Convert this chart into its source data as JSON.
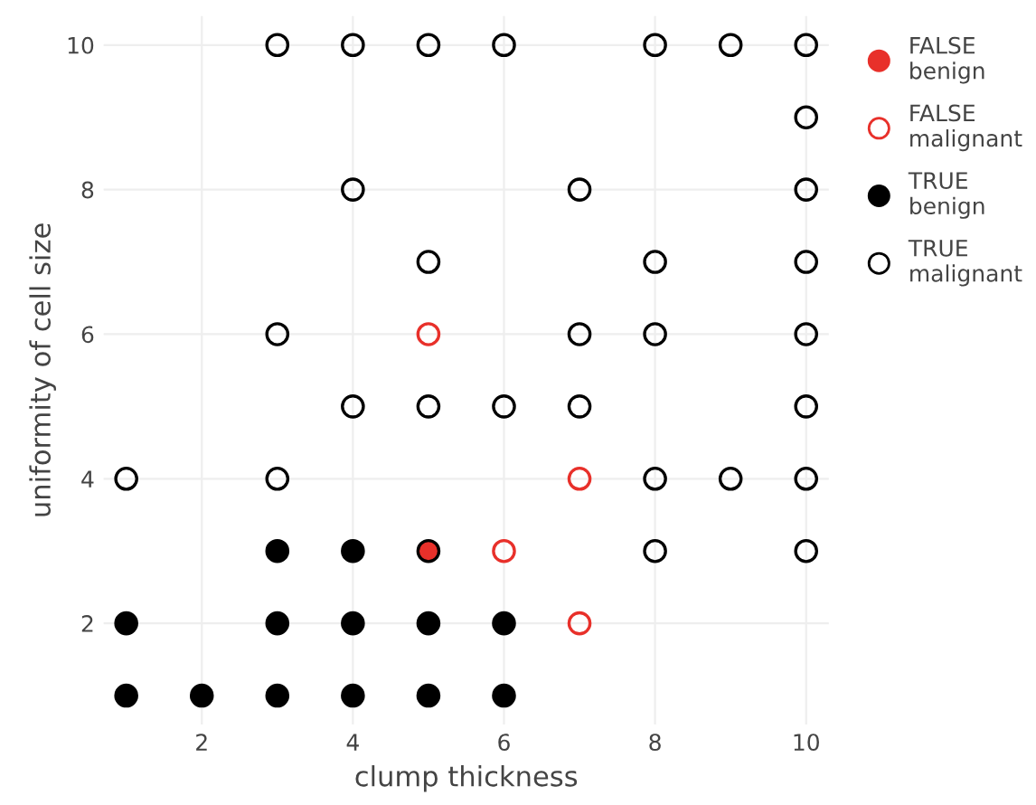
{
  "chart_data": {
    "type": "scatter",
    "xlabel": "clump thickness",
    "ylabel": "uniformity of cell size",
    "xlim": [
      0.7,
      10.3
    ],
    "ylim": [
      0.6,
      10.4
    ],
    "xticks": [
      2,
      4,
      6,
      8,
      10
    ],
    "yticks": [
      2,
      4,
      6,
      8,
      10
    ],
    "grid": true,
    "legend": "right",
    "series": [
      {
        "name": "FALSE\nbenign",
        "color": "#e8302a",
        "marker": "circle",
        "x": [
          5
        ],
        "values": [
          3
        ]
      },
      {
        "name": "FALSE\nmalignant",
        "color": "#e8302a",
        "marker": "circle-open",
        "x": [
          5,
          7,
          6,
          7
        ],
        "values": [
          6,
          4,
          3,
          2
        ]
      },
      {
        "name": "TRUE\nbenign",
        "color": "#000000",
        "marker": "circle",
        "x": [
          1,
          2,
          3,
          4,
          5,
          6,
          1,
          3,
          4,
          5,
          6,
          3,
          4
        ],
        "values": [
          1,
          1,
          1,
          1,
          1,
          1,
          2,
          2,
          2,
          2,
          2,
          3,
          3
        ]
      },
      {
        "name": "TRUE\nmalignant",
        "color": "#000000",
        "marker": "circle-open",
        "x": [
          3,
          4,
          5,
          6,
          8,
          9,
          10,
          10,
          4,
          7,
          10,
          5,
          8,
          10,
          3,
          7,
          8,
          10,
          4,
          5,
          6,
          7,
          10,
          1,
          3,
          8,
          9,
          10,
          8,
          10
        ],
        "values": [
          10,
          10,
          10,
          10,
          10,
          10,
          10,
          9,
          8,
          8,
          8,
          7,
          7,
          7,
          6,
          6,
          6,
          6,
          5,
          5,
          5,
          5,
          5,
          4,
          4,
          4,
          4,
          4,
          3,
          3
        ]
      }
    ]
  }
}
